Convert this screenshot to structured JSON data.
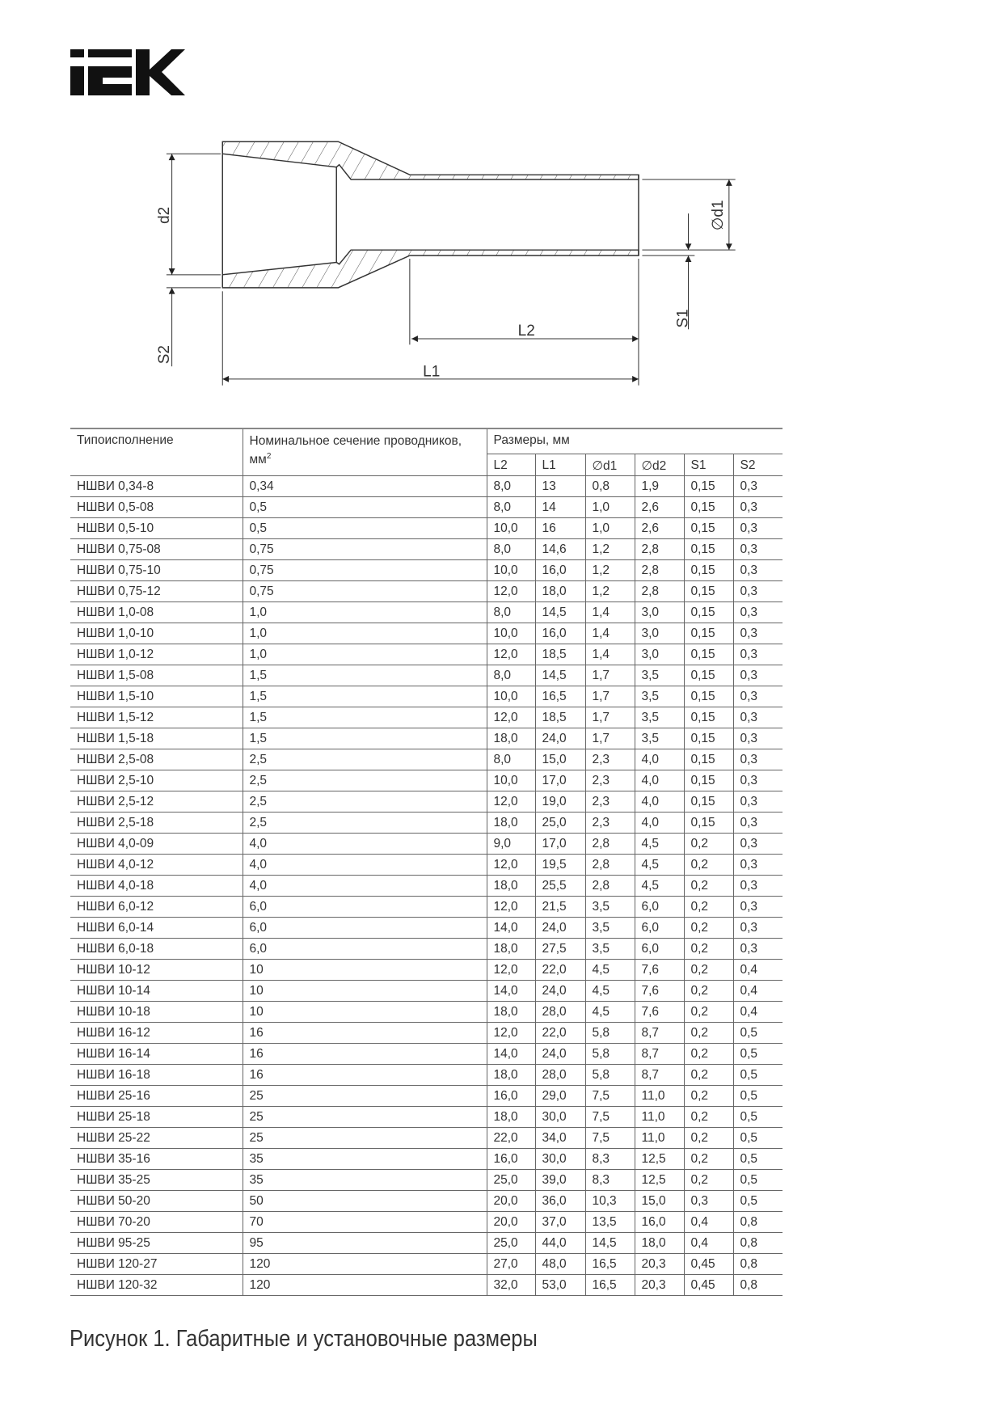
{
  "logo": {
    "brand": "IEK",
    "color": "#111111"
  },
  "drawing": {
    "labels": {
      "d2": "d2",
      "s2": "S2",
      "d1": "∅d1",
      "s1": "S1",
      "l2": "L2",
      "l1": "L1"
    }
  },
  "table": {
    "headers": {
      "type": "Типоисполнение",
      "section": "Номинальное сечение проводников,",
      "section_unit": "мм",
      "section_unit_sup": "2",
      "dimensions": "Размеры, мм",
      "cols": [
        "L2",
        "L1",
        "∅d1",
        "∅d2",
        "S1",
        "S2"
      ]
    },
    "rows": [
      [
        "НШВИ 0,34-8",
        "0,34",
        "8,0",
        "13",
        "0,8",
        "1,9",
        "0,15",
        "0,3"
      ],
      [
        "НШВИ 0,5-08",
        "0,5",
        "8,0",
        "14",
        "1,0",
        "2,6",
        "0,15",
        "0,3"
      ],
      [
        "НШВИ 0,5-10",
        "0,5",
        "10,0",
        "16",
        "1,0",
        "2,6",
        "0,15",
        "0,3"
      ],
      [
        "НШВИ 0,75-08",
        "0,75",
        "8,0",
        "14,6",
        "1,2",
        "2,8",
        "0,15",
        "0,3"
      ],
      [
        "НШВИ 0,75-10",
        "0,75",
        "10,0",
        "16,0",
        "1,2",
        "2,8",
        "0,15",
        "0,3"
      ],
      [
        "НШВИ 0,75-12",
        "0,75",
        "12,0",
        "18,0",
        "1,2",
        "2,8",
        "0,15",
        "0,3"
      ],
      [
        "НШВИ 1,0-08",
        "1,0",
        "8,0",
        "14,5",
        "1,4",
        "3,0",
        "0,15",
        "0,3"
      ],
      [
        "НШВИ 1,0-10",
        "1,0",
        "10,0",
        "16,0",
        "1,4",
        "3,0",
        "0,15",
        "0,3"
      ],
      [
        "НШВИ 1,0-12",
        "1,0",
        "12,0",
        "18,5",
        "1,4",
        "3,0",
        "0,15",
        "0,3"
      ],
      [
        "НШВИ 1,5-08",
        "1,5",
        "8,0",
        "14,5",
        "1,7",
        "3,5",
        "0,15",
        "0,3"
      ],
      [
        "НШВИ 1,5-10",
        "1,5",
        "10,0",
        "16,5",
        "1,7",
        "3,5",
        "0,15",
        "0,3"
      ],
      [
        "НШВИ 1,5-12",
        "1,5",
        "12,0",
        "18,5",
        "1,7",
        "3,5",
        "0,15",
        "0,3"
      ],
      [
        "НШВИ 1,5-18",
        "1,5",
        "18,0",
        "24,0",
        "1,7",
        "3,5",
        "0,15",
        "0,3"
      ],
      [
        "НШВИ 2,5-08",
        "2,5",
        "8,0",
        "15,0",
        "2,3",
        "4,0",
        "0,15",
        "0,3"
      ],
      [
        "НШВИ 2,5-10",
        "2,5",
        "10,0",
        "17,0",
        "2,3",
        "4,0",
        "0,15",
        "0,3"
      ],
      [
        "НШВИ 2,5-12",
        "2,5",
        "12,0",
        "19,0",
        "2,3",
        "4,0",
        "0,15",
        "0,3"
      ],
      [
        "НШВИ 2,5-18",
        "2,5",
        "18,0",
        "25,0",
        "2,3",
        "4,0",
        "0,15",
        "0,3"
      ],
      [
        "НШВИ 4,0-09",
        "4,0",
        "9,0",
        "17,0",
        "2,8",
        "4,5",
        "0,2",
        "0,3"
      ],
      [
        "НШВИ 4,0-12",
        "4,0",
        "12,0",
        "19,5",
        "2,8",
        "4,5",
        "0,2",
        "0,3"
      ],
      [
        "НШВИ 4,0-18",
        "4,0",
        "18,0",
        "25,5",
        "2,8",
        "4,5",
        "0,2",
        "0,3"
      ],
      [
        "НШВИ 6,0-12",
        "6,0",
        "12,0",
        "21,5",
        "3,5",
        "6,0",
        "0,2",
        "0,3"
      ],
      [
        "НШВИ 6,0-14",
        "6,0",
        "14,0",
        "24,0",
        "3,5",
        "6,0",
        "0,2",
        "0,3"
      ],
      [
        "НШВИ 6,0-18",
        "6,0",
        "18,0",
        "27,5",
        "3,5",
        "6,0",
        "0,2",
        "0,3"
      ],
      [
        "НШВИ 10-12",
        "10",
        "12,0",
        "22,0",
        "4,5",
        "7,6",
        "0,2",
        "0,4"
      ],
      [
        "НШВИ 10-14",
        "10",
        "14,0",
        "24,0",
        "4,5",
        "7,6",
        "0,2",
        "0,4"
      ],
      [
        "НШВИ 10-18",
        "10",
        "18,0",
        "28,0",
        "4,5",
        "7,6",
        "0,2",
        "0,4"
      ],
      [
        "НШВИ 16-12",
        "16",
        "12,0",
        "22,0",
        "5,8",
        "8,7",
        "0,2",
        "0,5"
      ],
      [
        "НШВИ 16-14",
        "16",
        "14,0",
        "24,0",
        "5,8",
        "8,7",
        "0,2",
        "0,5"
      ],
      [
        "НШВИ 16-18",
        "16",
        "18,0",
        "28,0",
        "5,8",
        "8,7",
        "0,2",
        "0,5"
      ],
      [
        "НШВИ 25-16",
        "25",
        "16,0",
        "29,0",
        "7,5",
        "11,0",
        "0,2",
        "0,5"
      ],
      [
        "НШВИ 25-18",
        "25",
        "18,0",
        "30,0",
        "7,5",
        "11,0",
        "0,2",
        "0,5"
      ],
      [
        "НШВИ 25-22",
        "25",
        "22,0",
        "34,0",
        "7,5",
        "11,0",
        "0,2",
        "0,5"
      ],
      [
        "НШВИ 35-16",
        "35",
        "16,0",
        "30,0",
        "8,3",
        "12,5",
        "0,2",
        "0,5"
      ],
      [
        "НШВИ 35-25",
        "35",
        "25,0",
        "39,0",
        "8,3",
        "12,5",
        "0,2",
        "0,5"
      ],
      [
        "НШВИ 50-20",
        "50",
        "20,0",
        "36,0",
        "10,3",
        "15,0",
        "0,3",
        "0,5"
      ],
      [
        "НШВИ 70-20",
        "70",
        "20,0",
        "37,0",
        "13,5",
        "16,0",
        "0,4",
        "0,8"
      ],
      [
        "НШВИ 95-25",
        "95",
        "25,0",
        "44,0",
        "14,5",
        "18,0",
        "0,4",
        "0,8"
      ],
      [
        "НШВИ 120-27",
        "120",
        "27,0",
        "48,0",
        "16,5",
        "20,3",
        "0,45",
        "0,8"
      ],
      [
        "НШВИ 120-32",
        "120",
        "32,0",
        "53,0",
        "16,5",
        "20,3",
        "0,45",
        "0,8"
      ]
    ]
  },
  "caption": "Рисунок 1. Габаритные и установочные размеры"
}
